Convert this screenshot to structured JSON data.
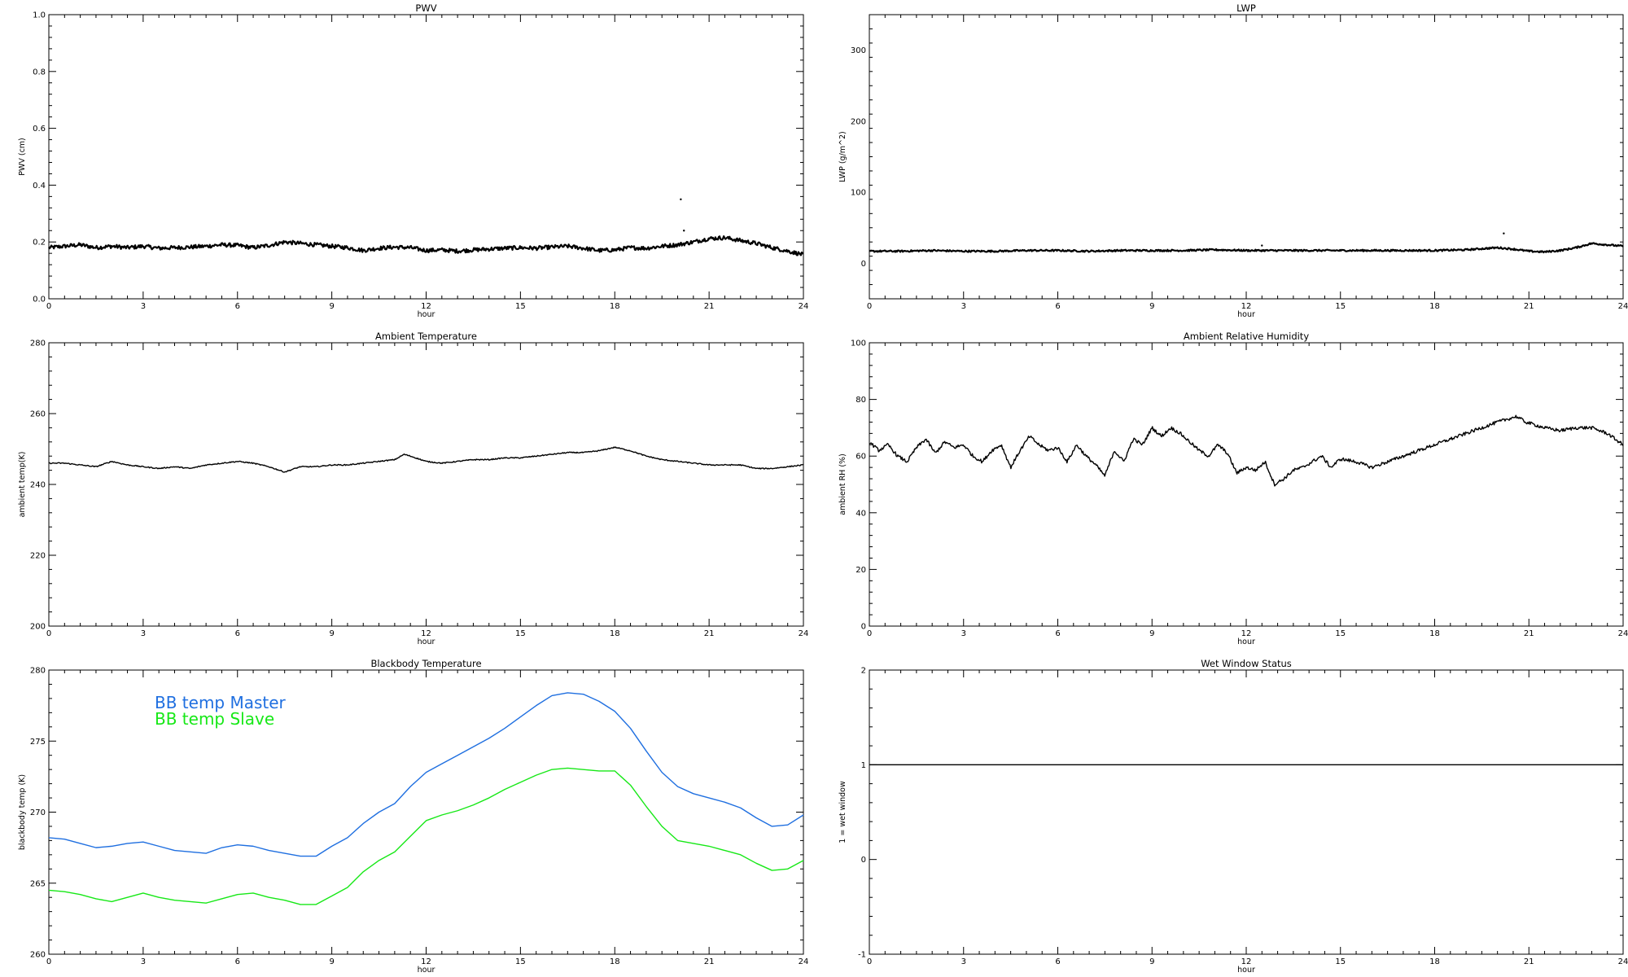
{
  "chart_data": [
    {
      "type": "line",
      "title": "PWV",
      "xlabel": "hour",
      "ylabel": "PWV (cm)",
      "xlim": [
        0,
        24
      ],
      "ylim": [
        0.0,
        1.0
      ],
      "xticks": [
        "0",
        "3",
        "6",
        "9",
        "12",
        "15",
        "18",
        "21",
        "24"
      ],
      "yticks": [
        "0.0",
        "0.2",
        "0.4",
        "0.6",
        "0.8",
        "1.0"
      ],
      "grid": false,
      "series": [
        {
          "color": "#000000",
          "noise": 0.007,
          "x": [
            0,
            0.5,
            1,
            1.5,
            2,
            2.5,
            3,
            3.5,
            4,
            4.5,
            5,
            5.5,
            6,
            6.5,
            7,
            7.5,
            8,
            8.5,
            9,
            9.5,
            10,
            10.5,
            11,
            11.5,
            12,
            12.5,
            13,
            13.5,
            14,
            14.5,
            15,
            15.5,
            16,
            16.5,
            17,
            17.5,
            18,
            18.5,
            19,
            19.5,
            20,
            20.5,
            21,
            21.5,
            22,
            22.5,
            23,
            23.5,
            24
          ],
          "y": [
            0.18,
            0.185,
            0.19,
            0.18,
            0.185,
            0.18,
            0.185,
            0.178,
            0.18,
            0.182,
            0.185,
            0.19,
            0.188,
            0.18,
            0.188,
            0.2,
            0.195,
            0.19,
            0.185,
            0.18,
            0.17,
            0.178,
            0.182,
            0.18,
            0.17,
            0.172,
            0.168,
            0.172,
            0.175,
            0.178,
            0.18,
            0.178,
            0.182,
            0.185,
            0.178,
            0.17,
            0.172,
            0.18,
            0.178,
            0.185,
            0.19,
            0.2,
            0.212,
            0.215,
            0.205,
            0.195,
            0.18,
            0.168,
            0.155
          ]
        }
      ],
      "points": [
        {
          "x": 20.1,
          "y": 0.35
        },
        {
          "x": 20.2,
          "y": 0.24
        }
      ]
    },
    {
      "type": "line",
      "title": "LWP",
      "xlabel": "hour",
      "ylabel": "LWP (g/m^2)",
      "xlim": [
        0,
        24
      ],
      "ylim": [
        -50,
        350
      ],
      "xticks": [
        "0",
        "3",
        "6",
        "9",
        "12",
        "15",
        "18",
        "21",
        "24"
      ],
      "yticks": [
        "0",
        "100",
        "200",
        "300"
      ],
      "grid": false,
      "series": [
        {
          "color": "#000000",
          "noise": 1.2,
          "x": [
            0,
            1,
            2,
            3,
            4,
            5,
            6,
            7,
            8,
            9,
            10,
            11,
            12,
            13,
            14,
            15,
            16,
            17,
            18,
            19,
            20,
            20.5,
            21,
            21.5,
            22,
            22.5,
            23,
            23.5,
            24
          ],
          "y": [
            17,
            17,
            18,
            17,
            17,
            18,
            18,
            17,
            18,
            18,
            18,
            19,
            18,
            18,
            18,
            18,
            18,
            18,
            18,
            19,
            22,
            20,
            17,
            16,
            18,
            22,
            28,
            26,
            24
          ]
        }
      ],
      "points": [
        {
          "x": 20.2,
          "y": 42
        },
        {
          "x": 12.5,
          "y": 25
        }
      ]
    },
    {
      "type": "line",
      "title": "Ambient Temperature",
      "xlabel": "hour",
      "ylabel": "ambient temp(K)",
      "xlim": [
        0,
        24
      ],
      "ylim": [
        200,
        280
      ],
      "xticks": [
        "0",
        "3",
        "6",
        "9",
        "12",
        "15",
        "18",
        "21",
        "24"
      ],
      "yticks": [
        "200",
        "220",
        "240",
        "260",
        "280"
      ],
      "grid": false,
      "series": [
        {
          "color": "#000000",
          "noise": 0.15,
          "x": [
            0,
            0.5,
            1,
            1.5,
            2,
            2.5,
            3,
            3.5,
            4,
            4.5,
            5,
            5.5,
            6,
            6.5,
            7,
            7.5,
            8,
            8.5,
            9,
            9.5,
            10,
            10.5,
            11,
            11.3,
            11.5,
            12,
            12.5,
            13,
            13.5,
            14,
            14.5,
            15,
            15.5,
            16,
            16.5,
            17,
            17.5,
            18,
            18.5,
            19,
            19.5,
            20,
            20.5,
            21,
            21.5,
            22,
            22.5,
            23,
            23.5,
            24
          ],
          "y": [
            246,
            246,
            245.5,
            245,
            246.5,
            245.5,
            245,
            244.5,
            245,
            244.5,
            245.5,
            246,
            246.5,
            246,
            245,
            243.5,
            245,
            245,
            245.5,
            245.5,
            246,
            246.5,
            247,
            248.5,
            248,
            246.5,
            246,
            246.5,
            247,
            247,
            247.5,
            247.5,
            248,
            248.5,
            249,
            249,
            249.5,
            250.5,
            249.5,
            248,
            247,
            246.5,
            246,
            245.5,
            245.5,
            245.5,
            244.5,
            244.5,
            245,
            245.5
          ]
        }
      ]
    },
    {
      "type": "line",
      "title": "Ambient Relative Humidity",
      "xlabel": "hour",
      "ylabel": "ambient RH (%)",
      "xlim": [
        0,
        24
      ],
      "ylim": [
        0,
        100
      ],
      "xticks": [
        "0",
        "3",
        "6",
        "9",
        "12",
        "15",
        "18",
        "21",
        "24"
      ],
      "yticks": [
        "0",
        "20",
        "40",
        "60",
        "80",
        "100"
      ],
      "grid": false,
      "series": [
        {
          "color": "#000000",
          "noise": 0.6,
          "x": [
            0,
            0.3,
            0.6,
            0.9,
            1.2,
            1.5,
            1.8,
            2.1,
            2.4,
            2.7,
            3,
            3.3,
            3.6,
            3.9,
            4.2,
            4.5,
            4.8,
            5.1,
            5.4,
            5.7,
            6,
            6.3,
            6.6,
            6.9,
            7.2,
            7.5,
            7.8,
            8.1,
            8.4,
            8.7,
            9,
            9.3,
            9.6,
            9.9,
            10.2,
            10.5,
            10.8,
            11.1,
            11.4,
            11.7,
            12,
            12.3,
            12.6,
            12.9,
            13.2,
            13.5,
            13.8,
            14.1,
            14.4,
            14.7,
            15,
            15.5,
            16,
            16.5,
            17,
            17.5,
            18,
            18.5,
            19,
            19.5,
            20,
            20.3,
            20.6,
            20.9,
            21.2,
            21.5,
            22,
            22.5,
            23,
            23.5,
            24
          ],
          "y": [
            65,
            62,
            64,
            60,
            58,
            63,
            66,
            61,
            65,
            63,
            64,
            60,
            58,
            62,
            64,
            56,
            62,
            67,
            64,
            62,
            63,
            58,
            64,
            60,
            57,
            53,
            62,
            58,
            66,
            64,
            70,
            67,
            70,
            68,
            65,
            62,
            60,
            64,
            61,
            54,
            56,
            55,
            58,
            50,
            52,
            55,
            56,
            58,
            60,
            56,
            59,
            58,
            56,
            58,
            60,
            62,
            64,
            66,
            68,
            70,
            72,
            73,
            74,
            72,
            71,
            70,
            69,
            70,
            70,
            68,
            64
          ]
        }
      ]
    },
    {
      "type": "line",
      "title": "Blackbody Temperature",
      "xlabel": "hour",
      "ylabel": "blackbody temp (K)",
      "xlim": [
        0,
        24
      ],
      "ylim": [
        260,
        280
      ],
      "xticks": [
        "0",
        "3",
        "6",
        "9",
        "12",
        "15",
        "18",
        "21",
        "24"
      ],
      "yticks": [
        "260",
        "265",
        "270",
        "275",
        "280"
      ],
      "grid": false,
      "legend": "top-left",
      "series": [
        {
          "name": "BB temp Master",
          "color": "#1f6fe0",
          "noise": 0,
          "x": [
            0,
            0.5,
            1,
            1.5,
            2,
            2.5,
            3,
            3.5,
            4,
            4.5,
            5,
            5.5,
            6,
            6.5,
            7,
            7.5,
            8,
            8.5,
            9,
            9.5,
            10,
            10.5,
            11,
            11.5,
            12,
            12.5,
            13,
            13.5,
            14,
            14.5,
            15,
            15.5,
            16,
            16.5,
            17,
            17.5,
            18,
            18.5,
            19,
            19.5,
            20,
            20.5,
            21,
            21.5,
            22,
            22.5,
            23,
            23.5,
            24
          ],
          "y": [
            268.2,
            268.1,
            267.8,
            267.5,
            267.6,
            267.8,
            267.9,
            267.6,
            267.3,
            267.2,
            267.1,
            267.5,
            267.7,
            267.6,
            267.3,
            267.1,
            266.9,
            266.9,
            267.6,
            268.2,
            269.2,
            270.0,
            270.6,
            271.8,
            272.8,
            273.4,
            274.0,
            274.6,
            275.2,
            275.9,
            276.7,
            277.5,
            278.2,
            278.4,
            278.3,
            277.8,
            277.1,
            275.9,
            274.3,
            272.8,
            271.8,
            271.3,
            271.0,
            270.7,
            270.3,
            269.6,
            269.0,
            269.1,
            269.8
          ]
        },
        {
          "name": "BB temp Slave",
          "color": "#17e817",
          "noise": 0,
          "x": [
            0,
            0.5,
            1,
            1.5,
            2,
            2.5,
            3,
            3.5,
            4,
            4.5,
            5,
            5.5,
            6,
            6.5,
            7,
            7.5,
            8,
            8.5,
            9,
            9.5,
            10,
            10.5,
            11,
            11.5,
            12,
            12.5,
            13,
            13.5,
            14,
            14.5,
            15,
            15.5,
            16,
            16.5,
            17,
            17.5,
            18,
            18.5,
            19,
            19.5,
            20,
            20.5,
            21,
            21.5,
            22,
            22.5,
            23,
            23.5,
            24
          ],
          "y": [
            264.5,
            264.4,
            264.2,
            263.9,
            263.7,
            264.0,
            264.3,
            264.0,
            263.8,
            263.7,
            263.6,
            263.9,
            264.2,
            264.3,
            264.0,
            263.8,
            263.5,
            263.5,
            264.1,
            264.7,
            265.8,
            266.6,
            267.2,
            268.3,
            269.4,
            269.8,
            270.1,
            270.5,
            271.0,
            271.6,
            272.1,
            272.6,
            273.0,
            273.1,
            273.0,
            272.9,
            272.9,
            271.9,
            270.4,
            269.0,
            268.0,
            267.8,
            267.6,
            267.3,
            267.0,
            266.4,
            265.9,
            266.0,
            266.6
          ]
        }
      ]
    },
    {
      "type": "line",
      "title": "Wet Window Status",
      "xlabel": "hour",
      "ylabel": "1 = wet window",
      "xlim": [
        0,
        24
      ],
      "ylim": [
        -1,
        2
      ],
      "xticks": [
        "0",
        "3",
        "6",
        "9",
        "12",
        "15",
        "18",
        "21",
        "24"
      ],
      "yticks": [
        "-1",
        "0",
        "1",
        "2"
      ],
      "grid": false,
      "series": [
        {
          "color": "#000000",
          "noise": 0,
          "x": [
            0,
            24
          ],
          "y": [
            1,
            1
          ]
        }
      ]
    }
  ]
}
